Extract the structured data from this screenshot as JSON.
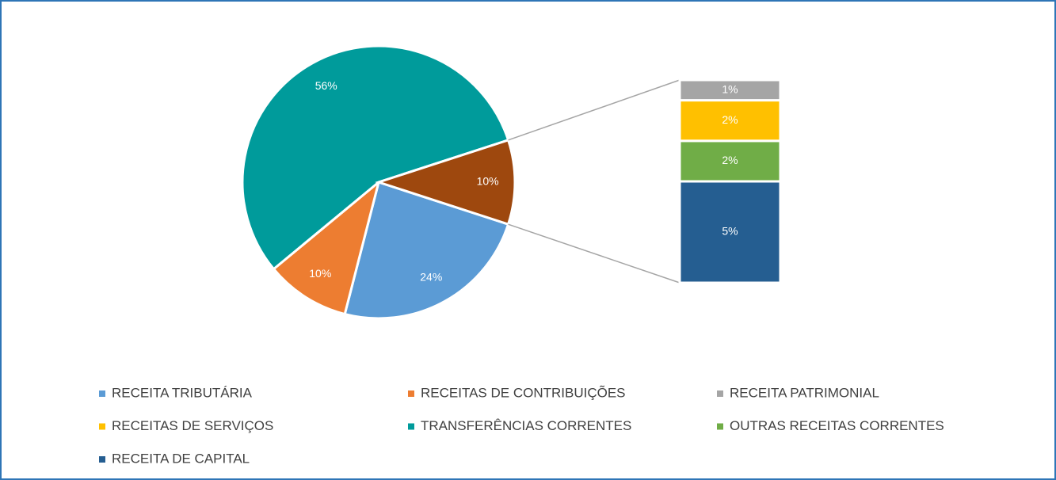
{
  "chart_data": {
    "type": "pie-of-bar",
    "categories": [
      "RECEITA TRIBUTÁRIA",
      "RECEITAS DE CONTRIBUIÇÕES",
      "RECEITA PATRIMONIAL",
      "RECEITAS DE SERVIÇOS",
      "TRANSFERÊNCIAS CORRENTES",
      "OUTRAS RECEITAS CORRENTES",
      "RECEITA DE CAPITAL"
    ],
    "values": [
      24,
      10,
      1,
      2,
      56,
      2,
      5
    ],
    "value_labels": [
      "24%",
      "10%",
      "1%",
      "2%",
      "56%",
      "2%",
      "5%"
    ],
    "colors": [
      "#5b9bd5",
      "#ed7d31",
      "#a5a5a5",
      "#ffc000",
      "#009b9b",
      "#70ad47",
      "#255e91"
    ],
    "in_bar": [
      false,
      false,
      true,
      true,
      false,
      true,
      true
    ],
    "other": {
      "value": 10,
      "label": "10%",
      "color": "#9e480e"
    },
    "legend": "bottom"
  }
}
